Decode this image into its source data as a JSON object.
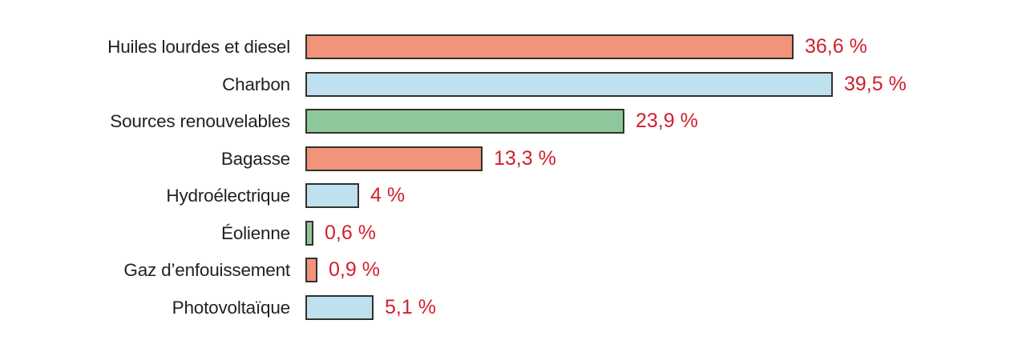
{
  "chart_data": {
    "type": "bar",
    "orientation": "horizontal",
    "title": "",
    "xlabel": "",
    "ylabel": "",
    "xlim": [
      0,
      40
    ],
    "grid": false,
    "legend": "none",
    "axis_lines": "none",
    "categories": [
      "Huiles lourdes et diesel",
      "Charbon",
      "Sources renouvelables",
      "Bagasse",
      "Hydroélectrique",
      "Éolienne",
      "Gaz d’enfouissement",
      "Photovoltaïque"
    ],
    "values": [
      36.6,
      39.5,
      23.9,
      13.3,
      4,
      0.6,
      0.9,
      5.1
    ],
    "value_labels": [
      "36,6 %",
      "39,5 %",
      "23,9 %",
      "13,3 %",
      "4 %",
      "0,6 %",
      "0,9 %",
      "5,1 %"
    ],
    "rows": [
      {
        "label": "Huiles lourdes et diesel",
        "value": 36.6,
        "value_label": "36,6 %",
        "color": "salmon"
      },
      {
        "label": "Charbon",
        "value": 39.5,
        "value_label": "39,5 %",
        "color": "blue"
      },
      {
        "label": "Sources renouvelables",
        "value": 23.9,
        "value_label": "23,9 %",
        "color": "green"
      },
      {
        "label": "Bagasse",
        "value": 13.3,
        "value_label": "13,3 %",
        "color": "salmon"
      },
      {
        "label": "Hydroélectrique",
        "value": 4,
        "value_label": "4 %",
        "color": "blue"
      },
      {
        "label": "Éolienne",
        "value": 0.6,
        "value_label": "0,6 %",
        "color": "green"
      },
      {
        "label": "Gaz d’enfouissement",
        "value": 0.9,
        "value_label": "0,9 %",
        "color": "salmon"
      },
      {
        "label": "Photovoltaïque",
        "value": 5.1,
        "value_label": "5,1 %",
        "color": "blue"
      }
    ],
    "palette": {
      "salmon": "#f29479",
      "blue": "#bfe0ee",
      "green": "#8ec79b"
    },
    "bar_border_color": "#33302b",
    "value_text_color": "#d0202e",
    "label_text_color": "#231f20",
    "background_color": "#ffffff"
  }
}
